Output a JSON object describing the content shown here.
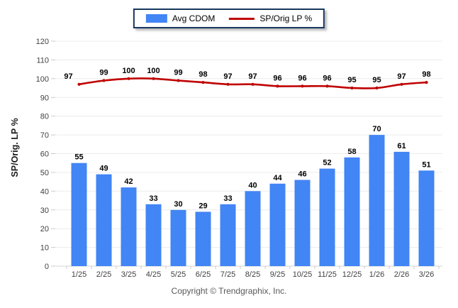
{
  "legend": {
    "items": [
      {
        "label": "Avg CDOM",
        "type": "bar"
      },
      {
        "label": "SP/Orig LP %",
        "type": "line"
      }
    ]
  },
  "footer": {
    "copyright": "Copyright © Trendgraphix, Inc."
  },
  "colors": {
    "bar": "#4285f4",
    "line": "#c00000",
    "legend_border": "#17375e",
    "grid": "#ececec",
    "axis": "#d4d4d4",
    "tick": "#c9c9c9",
    "tick_text": "#404040",
    "data_label": "#000000"
  },
  "chart_data": {
    "type": "bar+line combo",
    "title": "",
    "xlabel": "",
    "ylabel": "SP/Orig. LP %",
    "ylim": [
      0,
      120
    ],
    "ytick_step": 10,
    "grid": true,
    "legend_position": "top-center",
    "categories": [
      "1/25",
      "2/25",
      "3/25",
      "4/25",
      "5/25",
      "6/25",
      "7/25",
      "8/25",
      "9/25",
      "10/25",
      "11/25",
      "12/25",
      "1/26",
      "2/26",
      "3/26"
    ],
    "series": [
      {
        "name": "Avg CDOM",
        "type": "bar",
        "color": "#4285f4",
        "values": [
          55,
          49,
          42,
          33,
          30,
          29,
          33,
          40,
          44,
          46,
          52,
          58,
          70,
          61,
          51
        ]
      },
      {
        "name": "SP/Orig LP %",
        "type": "line",
        "color": "#c00000",
        "values": [
          97,
          99,
          100,
          100,
          99,
          98,
          97,
          97,
          96,
          96,
          96,
          95,
          95,
          97,
          98
        ]
      }
    ]
  }
}
